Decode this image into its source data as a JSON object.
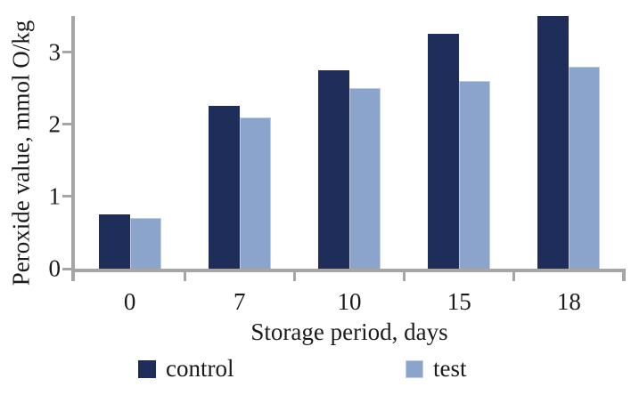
{
  "chart_data": {
    "type": "bar",
    "title": "",
    "categories": [
      "0",
      "7",
      "10",
      "15",
      "18"
    ],
    "series": [
      {
        "name": "control",
        "color": "#1f2d5a",
        "values": [
          0.75,
          2.25,
          2.75,
          3.25,
          3.5
        ]
      },
      {
        "name": "test",
        "color": "#8aa4cc",
        "values": [
          0.7,
          2.1,
          2.5,
          2.6,
          2.8
        ]
      }
    ],
    "xlabel": "Storage period, days",
    "ylabel": "Peroxide value, mmol O/kg",
    "ylim": [
      0,
      3.5
    ],
    "yticks": [
      0,
      1,
      2,
      3
    ],
    "grid": false,
    "legend_position": "bottom",
    "axis_color": "#a6a6a6",
    "text_color": "#1b1b1b"
  }
}
